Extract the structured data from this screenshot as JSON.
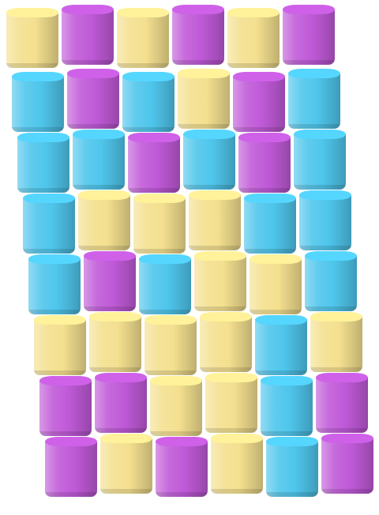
{
  "palette": {
    "yellow": "#f4e08f",
    "magenta": "#c05ad8",
    "cyan": "#4fc6ec"
  },
  "board": {
    "rows": [
      [
        "yellow",
        "magenta",
        "yellow",
        "magenta",
        "yellow",
        "magenta"
      ],
      [
        "cyan",
        "magenta",
        "cyan",
        "yellow",
        "magenta",
        "cyan"
      ],
      [
        "cyan",
        "cyan",
        "magenta",
        "cyan",
        "magenta",
        "cyan"
      ],
      [
        "cyan",
        "yellow",
        "yellow",
        "yellow",
        "cyan",
        "cyan"
      ],
      [
        "cyan",
        "magenta",
        "cyan",
        "yellow",
        "yellow",
        "cyan"
      ],
      [
        "yellow",
        "yellow",
        "yellow",
        "yellow",
        "cyan",
        "yellow"
      ],
      [
        "magenta",
        "magenta",
        "yellow",
        "yellow",
        "cyan",
        "magenta"
      ],
      [
        "magenta",
        "yellow",
        "magenta",
        "yellow",
        "cyan",
        "magenta"
      ]
    ]
  }
}
